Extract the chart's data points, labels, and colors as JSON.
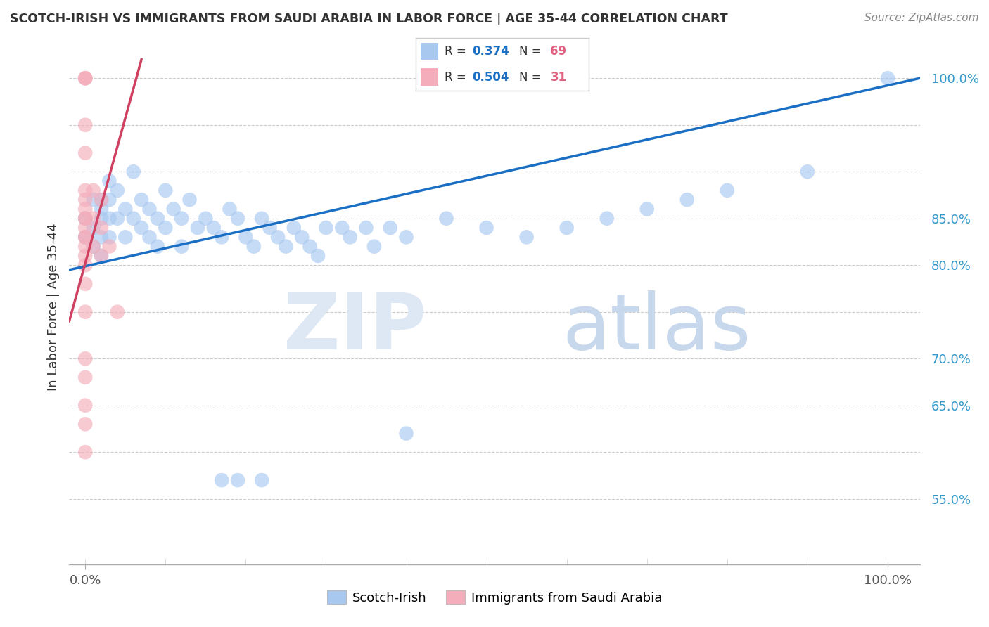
{
  "title": "SCOTCH-IRISH VS IMMIGRANTS FROM SAUDI ARABIA IN LABOR FORCE | AGE 35-44 CORRELATION CHART",
  "source": "Source: ZipAtlas.com",
  "ylabel": "In Labor Force | Age 35-44",
  "blue_R": 0.374,
  "blue_N": 69,
  "pink_R": 0.504,
  "pink_N": 31,
  "blue_color": "#A8C8F0",
  "pink_color": "#F4AEBB",
  "blue_line_color": "#1A6FC4",
  "pink_line_color": "#D04060",
  "legend_label_blue": "Scotch-Irish",
  "legend_label_pink": "Immigrants from Saudi Arabia",
  "blue_scatter_x": [
    0.0,
    0.0,
    0.01,
    0.01,
    0.01,
    0.02,
    0.02,
    0.02,
    0.02,
    0.02,
    0.03,
    0.03,
    0.03,
    0.03,
    0.04,
    0.04,
    0.05,
    0.05,
    0.06,
    0.06,
    0.07,
    0.07,
    0.08,
    0.08,
    0.09,
    0.09,
    0.1,
    0.1,
    0.11,
    0.12,
    0.12,
    0.13,
    0.14,
    0.15,
    0.16,
    0.17,
    0.18,
    0.19,
    0.2,
    0.21,
    0.22,
    0.23,
    0.24,
    0.25,
    0.26,
    0.27,
    0.28,
    0.29,
    0.3,
    0.32,
    0.33,
    0.35,
    0.36,
    0.38,
    0.4,
    0.45,
    0.5,
    0.55,
    0.6,
    0.65,
    0.7,
    0.75,
    0.8,
    0.9,
    1.0,
    0.17,
    0.19,
    0.22,
    0.4
  ],
  "blue_scatter_y": [
    0.83,
    0.85,
    0.87,
    0.84,
    0.82,
    0.87,
    0.86,
    0.85,
    0.83,
    0.81,
    0.89,
    0.87,
    0.85,
    0.83,
    0.88,
    0.85,
    0.86,
    0.83,
    0.9,
    0.85,
    0.87,
    0.84,
    0.86,
    0.83,
    0.85,
    0.82,
    0.88,
    0.84,
    0.86,
    0.85,
    0.82,
    0.87,
    0.84,
    0.85,
    0.84,
    0.83,
    0.86,
    0.85,
    0.83,
    0.82,
    0.85,
    0.84,
    0.83,
    0.82,
    0.84,
    0.83,
    0.82,
    0.81,
    0.84,
    0.84,
    0.83,
    0.84,
    0.82,
    0.84,
    0.83,
    0.85,
    0.84,
    0.83,
    0.84,
    0.85,
    0.86,
    0.87,
    0.88,
    0.9,
    1.0,
    0.57,
    0.57,
    0.57,
    0.62
  ],
  "pink_scatter_x": [
    0.0,
    0.0,
    0.0,
    0.0,
    0.0,
    0.0,
    0.0,
    0.0,
    0.0,
    0.0,
    0.0,
    0.0,
    0.0,
    0.0,
    0.0,
    0.0,
    0.0,
    0.01,
    0.01,
    0.01,
    0.02,
    0.02,
    0.02,
    0.03,
    0.04,
    0.0,
    0.0,
    0.0,
    0.0,
    0.0,
    0.0
  ],
  "pink_scatter_y": [
    1.0,
    1.0,
    1.0,
    0.95,
    0.92,
    0.88,
    0.87,
    0.86,
    0.85,
    0.85,
    0.84,
    0.83,
    0.82,
    0.81,
    0.8,
    0.78,
    0.83,
    0.88,
    0.85,
    0.82,
    0.87,
    0.84,
    0.81,
    0.82,
    0.75,
    0.75,
    0.7,
    0.68,
    0.65,
    0.63,
    0.6
  ],
  "blue_line_x0": -0.02,
  "blue_line_x1": 1.04,
  "blue_line_y0": 0.795,
  "blue_line_y1": 1.0,
  "pink_line_x0": -0.02,
  "pink_line_x1": 0.07,
  "pink_line_y0": 0.74,
  "pink_line_y1": 1.02,
  "xlim": [
    -0.02,
    1.04
  ],
  "ylim": [
    0.48,
    1.03
  ],
  "y_ticks": [
    0.55,
    0.6,
    0.65,
    0.7,
    0.75,
    0.8,
    0.85,
    0.9,
    0.95,
    1.0
  ],
  "y_tick_labels": [
    "55.0%",
    "",
    "65.0%",
    "70.0%",
    "",
    "80.0%",
    "85.0%",
    "",
    "",
    "100.0%"
  ]
}
